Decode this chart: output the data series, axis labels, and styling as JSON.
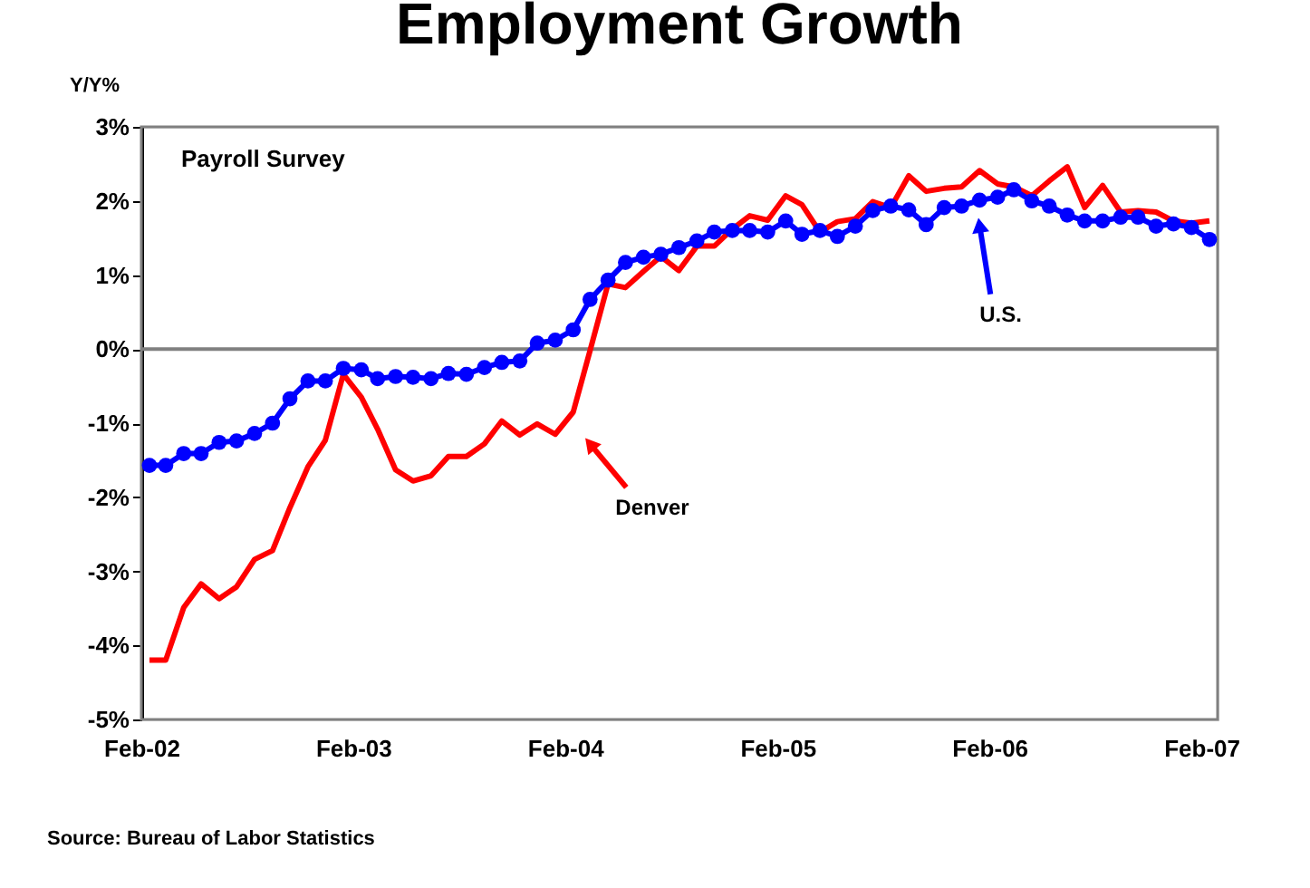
{
  "chart_data": {
    "type": "line",
    "title": "Employment Growth",
    "ylabel": "Y/Y%",
    "x": [
      "2002-02-15",
      "2002-03-15",
      "2002-04-15",
      "2002-05-15",
      "2002-06-15",
      "2002-07-15",
      "2002-08-15",
      "2002-09-15",
      "2002-10-15",
      "2002-11-15",
      "2002-12-15",
      "2003-01-15",
      "2003-02-15",
      "2003-03-15",
      "2003-04-15",
      "2003-05-15",
      "2003-06-15",
      "2003-07-15",
      "2003-08-15",
      "2003-09-15",
      "2003-10-15",
      "2003-11-15",
      "2003-12-15",
      "2004-01-15",
      "2004-02-15",
      "2004-03-15",
      "2004-04-15",
      "2004-05-15",
      "2004-06-15",
      "2004-07-15",
      "2004-08-15",
      "2004-09-15",
      "2004-10-15",
      "2004-11-15",
      "2004-12-15",
      "2005-01-15",
      "2005-02-15",
      "2005-03-15",
      "2005-04-15",
      "2005-05-15",
      "2005-06-15",
      "2005-07-15",
      "2005-08-15",
      "2005-09-15",
      "2005-10-15",
      "2005-11-15",
      "2005-12-15",
      "2006-01-15",
      "2006-02-15",
      "2006-03-15",
      "2006-04-15",
      "2006-05-15",
      "2006-06-15",
      "2006-07-15",
      "2006-08-15",
      "2006-09-15",
      "2006-10-15",
      "2006-11-15",
      "2006-12-15",
      "2007-01-15",
      "2007-02-15"
    ],
    "series": [
      {
        "color": "#ff0000",
        "marker": "none",
        "values": [
          -4.2,
          -4.2,
          -3.49,
          -3.17,
          -3.37,
          -3.21,
          -2.84,
          -2.72,
          -2.14,
          -1.59,
          -1.23,
          -0.34,
          -0.65,
          -1.08,
          -1.63,
          -1.78,
          -1.71,
          -1.45,
          -1.45,
          -1.28,
          -0.97,
          -1.16,
          -1.01,
          -1.15,
          -0.85,
          -0.02,
          0.88,
          0.83,
          1.05,
          1.25,
          1.06,
          1.39,
          1.39,
          1.62,
          1.8,
          1.74,
          2.07,
          1.95,
          1.58,
          1.72,
          1.76,
          1.99,
          1.91,
          2.34,
          2.13,
          2.17,
          2.19,
          2.41,
          2.23,
          2.19,
          2.07,
          2.27,
          2.46,
          1.91,
          2.21,
          1.85,
          1.87,
          1.85,
          1.73,
          1.7,
          1.73
        ]
      },
      {
        "color": "#0000ff",
        "marker": "circle",
        "values": [
          -1.57,
          -1.57,
          -1.41,
          -1.41,
          -1.26,
          -1.24,
          -1.14,
          -1.0,
          -0.67,
          -0.43,
          -0.43,
          -0.26,
          -0.28,
          -0.4,
          -0.37,
          -0.38,
          -0.4,
          -0.33,
          -0.34,
          -0.25,
          -0.18,
          -0.16,
          0.08,
          0.12,
          0.26,
          0.67,
          0.93,
          1.17,
          1.24,
          1.28,
          1.37,
          1.46,
          1.58,
          1.6,
          1.6,
          1.58,
          1.73,
          1.55,
          1.6,
          1.52,
          1.66,
          1.87,
          1.93,
          1.88,
          1.68,
          1.91,
          1.93,
          2.01,
          2.05,
          2.15,
          2.0,
          1.93,
          1.81,
          1.73,
          1.73,
          1.78,
          1.78,
          1.66,
          1.69,
          1.64,
          1.48
        ]
      }
    ],
    "xlim": [
      "2002-02-01",
      "2007-03-01"
    ],
    "xticks": [
      {
        "value": "2002-02-01",
        "label": "Feb-02"
      },
      {
        "value": "2003-02-01",
        "label": "Feb-03"
      },
      {
        "value": "2004-02-01",
        "label": "Feb-04"
      },
      {
        "value": "2005-02-01",
        "label": "Feb-05"
      },
      {
        "value": "2006-02-01",
        "label": "Feb-06"
      },
      {
        "value": "2007-02-01",
        "label": "Feb-07"
      }
    ],
    "ylim": [
      -5,
      3
    ],
    "yticks": [
      {
        "value": -5,
        "label": "-5%"
      },
      {
        "value": -4,
        "label": "-4%"
      },
      {
        "value": -3,
        "label": "-3%"
      },
      {
        "value": -2,
        "label": "-2%"
      },
      {
        "value": -1,
        "label": "-1%"
      },
      {
        "value": 0,
        "label": "0%"
      },
      {
        "value": 1,
        "label": "1%"
      },
      {
        "value": 2,
        "label": "2%"
      },
      {
        "value": 3,
        "label": "3%"
      }
    ],
    "ref_lines": [
      {
        "axis": "y",
        "value": 0,
        "color": "#808080"
      }
    ],
    "annotations": [
      "Payroll Survey",
      {
        "text": "Denver",
        "x": "2004-03-15",
        "y": -1.28
      },
      {
        "text": "U.S.",
        "x": "2006-01-15",
        "y": 1.67
      },
      "Source: Bureau of Labor Statistics"
    ],
    "grid": false
  }
}
